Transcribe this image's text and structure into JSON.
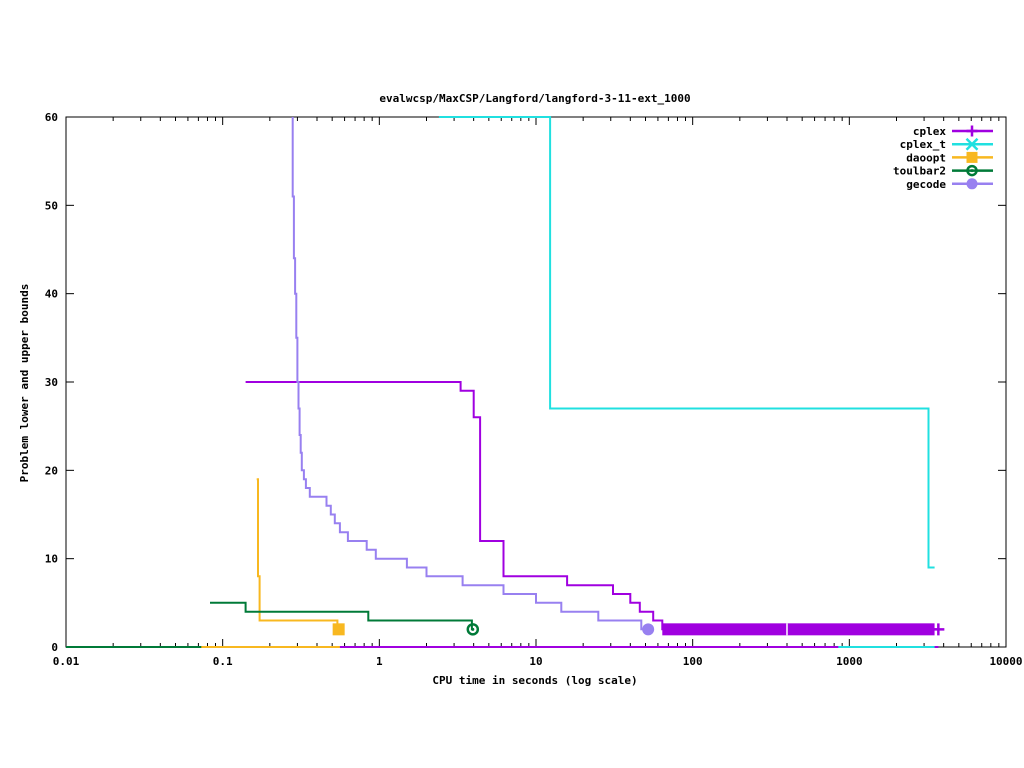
{
  "chart_data": {
    "type": "line",
    "title": "evalwcsp/MaxCSP/Langford/langford-3-11-ext_1000",
    "xlabel": "CPU time in seconds (log scale)",
    "ylabel": "Problem lower and upper bounds",
    "xscale": "log",
    "xlim": [
      0.01,
      10000
    ],
    "ylim": [
      0,
      60
    ],
    "xticks": [
      {
        "value": 0.01,
        "label": "0.01"
      },
      {
        "value": 0.1,
        "label": "0.1"
      },
      {
        "value": 1,
        "label": "1"
      },
      {
        "value": 10,
        "label": "10"
      },
      {
        "value": 100,
        "label": "100"
      },
      {
        "value": 1000,
        "label": "1000"
      },
      {
        "value": 10000,
        "label": "10000"
      }
    ],
    "yticks": [
      {
        "value": 0,
        "label": "0"
      },
      {
        "value": 10,
        "label": "10"
      },
      {
        "value": 20,
        "label": "20"
      },
      {
        "value": 30,
        "label": "30"
      },
      {
        "value": 40,
        "label": "40"
      },
      {
        "value": 50,
        "label": "50"
      },
      {
        "value": 60,
        "label": "60"
      }
    ],
    "grid": false,
    "legend_position": "top-right",
    "series": [
      {
        "name": "cplex",
        "color": "#a000e0",
        "marker": "plus",
        "upper": [
          [
            0.14,
            30
          ],
          [
            3.3,
            30
          ],
          [
            3.3,
            29
          ],
          [
            4.0,
            29
          ],
          [
            4.0,
            26
          ],
          [
            4.4,
            26
          ],
          [
            4.4,
            12
          ],
          [
            6.2,
            12
          ],
          [
            6.2,
            8
          ],
          [
            15.8,
            8
          ],
          [
            15.8,
            7
          ],
          [
            31,
            7
          ],
          [
            31,
            6
          ],
          [
            40,
            6
          ],
          [
            40,
            5
          ],
          [
            46,
            5
          ],
          [
            46,
            4
          ],
          [
            56,
            4
          ],
          [
            56,
            3
          ],
          [
            64,
            3
          ],
          [
            64,
            2
          ],
          [
            3700,
            2
          ]
        ],
        "lower": [
          [
            0.01,
            0
          ],
          [
            3700,
            0
          ]
        ],
        "markers": [
          [
            3700,
            2
          ]
        ]
      },
      {
        "name": "cplex_t",
        "color": "#20e0e0",
        "marker": "x",
        "upper": [
          [
            2.4,
            60
          ],
          [
            12.3,
            60
          ],
          [
            12.3,
            27
          ],
          [
            3200,
            27
          ],
          [
            3200,
            9
          ],
          [
            3500,
            9
          ]
        ],
        "lower": [
          [
            850,
            0
          ],
          [
            3500,
            0
          ]
        ],
        "markers": []
      },
      {
        "name": "daoopt",
        "color": "#f8b820",
        "marker": "square",
        "upper": [
          [
            0.165,
            19
          ],
          [
            0.168,
            19
          ],
          [
            0.168,
            8
          ],
          [
            0.172,
            8
          ],
          [
            0.172,
            3
          ],
          [
            0.54,
            3
          ],
          [
            0.54,
            2
          ],
          [
            0.56,
            2
          ]
        ],
        "lower": [
          [
            0.01,
            0
          ],
          [
            0.56,
            0
          ]
        ],
        "markers": [
          [
            0.55,
            2
          ]
        ]
      },
      {
        "name": "toulbar2",
        "color": "#007a38",
        "marker": "circle-open",
        "upper": [
          [
            0.083,
            5
          ],
          [
            0.14,
            5
          ],
          [
            0.14,
            4
          ],
          [
            0.85,
            4
          ],
          [
            0.85,
            3
          ],
          [
            3.9,
            3
          ],
          [
            3.9,
            2
          ],
          [
            4.0,
            2
          ]
        ],
        "lower": [
          [
            0.01,
            0
          ],
          [
            0.073,
            0
          ]
        ],
        "markers": [
          [
            3.95,
            2
          ]
        ]
      },
      {
        "name": "gecode",
        "color": "#9880f0",
        "marker": "circle-filled",
        "upper": [
          [
            0.28,
            60
          ],
          [
            0.28,
            51
          ],
          [
            0.285,
            51
          ],
          [
            0.285,
            44
          ],
          [
            0.29,
            44
          ],
          [
            0.29,
            40
          ],
          [
            0.295,
            40
          ],
          [
            0.295,
            35
          ],
          [
            0.3,
            35
          ],
          [
            0.3,
            30
          ],
          [
            0.305,
            30
          ],
          [
            0.305,
            27
          ],
          [
            0.31,
            27
          ],
          [
            0.31,
            24
          ],
          [
            0.315,
            24
          ],
          [
            0.315,
            22
          ],
          [
            0.32,
            22
          ],
          [
            0.32,
            20
          ],
          [
            0.33,
            20
          ],
          [
            0.33,
            19
          ],
          [
            0.34,
            19
          ],
          [
            0.34,
            18
          ],
          [
            0.36,
            18
          ],
          [
            0.36,
            17
          ],
          [
            0.46,
            17
          ],
          [
            0.46,
            16
          ],
          [
            0.49,
            16
          ],
          [
            0.49,
            15
          ],
          [
            0.52,
            15
          ],
          [
            0.52,
            14
          ],
          [
            0.56,
            14
          ],
          [
            0.56,
            13
          ],
          [
            0.63,
            13
          ],
          [
            0.63,
            12
          ],
          [
            0.83,
            12
          ],
          [
            0.83,
            11
          ],
          [
            0.95,
            11
          ],
          [
            0.95,
            10
          ],
          [
            1.5,
            10
          ],
          [
            1.5,
            9
          ],
          [
            2.0,
            9
          ],
          [
            2.0,
            8
          ],
          [
            3.4,
            8
          ],
          [
            3.4,
            7
          ],
          [
            6.2,
            7
          ],
          [
            6.2,
            6
          ],
          [
            10,
            6
          ],
          [
            10,
            5
          ],
          [
            14.5,
            5
          ],
          [
            14.5,
            4
          ],
          [
            25,
            4
          ],
          [
            25,
            3
          ],
          [
            47,
            3
          ],
          [
            47,
            2
          ],
          [
            52,
            2
          ]
        ],
        "lower": [],
        "markers": [
          [
            52,
            2
          ]
        ]
      }
    ]
  }
}
